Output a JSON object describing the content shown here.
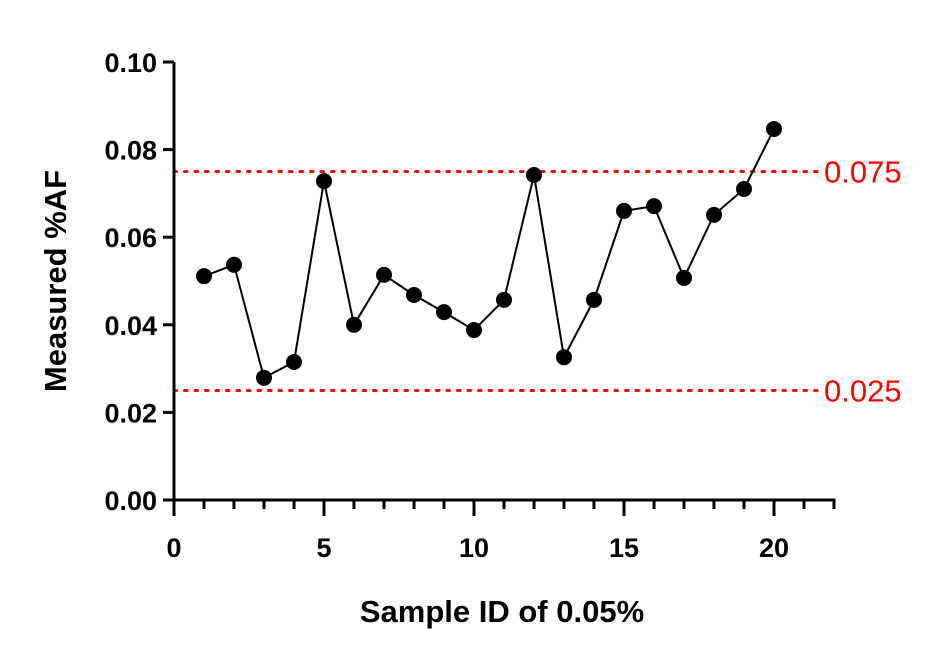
{
  "chart_data": {
    "type": "line",
    "title": "",
    "xlabel": "Sample ID of 0.05%",
    "ylabel": "Measured %AF",
    "xlim": [
      0,
      22
    ],
    "ylim": [
      0,
      0.1
    ],
    "x_ticks": [
      "0",
      "5",
      "10",
      "15",
      "20"
    ],
    "x_tick_values": [
      0,
      5,
      10,
      15,
      20
    ],
    "x_minor_step": 1,
    "y_ticks": [
      "0.00",
      "0.02",
      "0.04",
      "0.06",
      "0.08",
      "0.10"
    ],
    "y_tick_values": [
      0,
      0.02,
      0.04,
      0.06,
      0.08,
      0.1
    ],
    "grid": false,
    "series": [
      {
        "x": [
          1,
          2,
          3,
          4,
          5,
          6,
          7,
          8,
          9,
          10,
          11,
          12,
          13,
          14,
          15,
          16,
          17,
          18,
          19,
          20
        ],
        "y": [
          0.0511,
          0.0537,
          0.0279,
          0.0315,
          0.0728,
          0.04,
          0.0514,
          0.0468,
          0.0429,
          0.0388,
          0.0457,
          0.0742,
          0.0326,
          0.0457,
          0.066,
          0.0671,
          0.0507,
          0.0651,
          0.071,
          0.0847
        ],
        "color": "#000000",
        "marker": "circle"
      }
    ],
    "reference_lines": [
      {
        "y": 0.075,
        "label": "0.075",
        "color": "#ff0000",
        "style": "dotted"
      },
      {
        "y": 0.025,
        "label": "0.025",
        "color": "#ff0000",
        "style": "dotted"
      }
    ]
  }
}
